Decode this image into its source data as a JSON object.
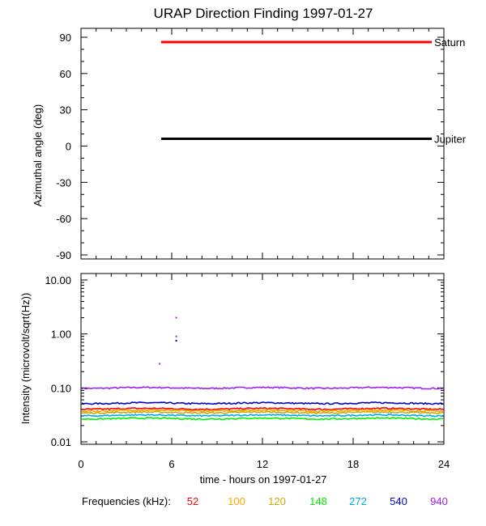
{
  "title": "URAP Direction Finding  1997-01-27",
  "chart_data": [
    {
      "type": "line",
      "panel": "top",
      "ylabel": "Azimuthal angle (deg)",
      "xlim": [
        0,
        24
      ],
      "ylim": [
        -90,
        90
      ],
      "yticks": [
        "90",
        "60",
        "30",
        "0",
        "-30",
        "-60",
        "-90"
      ],
      "series": [
        {
          "name": "Saturn",
          "color": "#ff0000",
          "x": [
            5.3,
            23.2
          ],
          "values": [
            86,
            86
          ]
        },
        {
          "name": "Jupiter",
          "color": "#000000",
          "x": [
            5.3,
            23.2
          ],
          "values": [
            6,
            6
          ]
        }
      ],
      "grid": false
    },
    {
      "type": "line",
      "panel": "bottom",
      "ylabel": "Intensity (microvolt/sqrt(Hz))",
      "xlabel": "time - hours on 1997-01-27",
      "xlim": [
        0,
        24
      ],
      "ylim": [
        0.01,
        10
      ],
      "yscale": "log",
      "xticks": [
        "0",
        "6",
        "12",
        "18",
        "24"
      ],
      "yticks": [
        "10.00",
        "1.00",
        "0.10",
        "0.01"
      ],
      "series": [
        {
          "name": "940",
          "color": "#a020f0",
          "x": [
            0,
            24
          ],
          "values": [
            0.1,
            0.1
          ]
        },
        {
          "name": "540",
          "color": "#0000cc",
          "x": [
            0,
            24
          ],
          "values": [
            0.052,
            0.052
          ]
        },
        {
          "name": "52",
          "color": "#ff0000",
          "x": [
            0,
            24
          ],
          "values": [
            0.041,
            0.041
          ]
        },
        {
          "name": "100",
          "color": "#ffa500",
          "x": [
            0,
            24
          ],
          "values": [
            0.038,
            0.038
          ]
        },
        {
          "name": "120",
          "color": "#ccaa00",
          "x": [
            0,
            24
          ],
          "values": [
            0.035,
            0.035
          ]
        },
        {
          "name": "272",
          "color": "#00aaee",
          "x": [
            0,
            24
          ],
          "values": [
            0.031,
            0.031
          ]
        },
        {
          "name": "148",
          "color": "#00ee00",
          "x": [
            0,
            24
          ],
          "values": [
            0.027,
            0.027
          ]
        }
      ],
      "spikes": [
        {
          "x": 6.3,
          "y": 2.0,
          "color": "#a020f0"
        },
        {
          "x": 6.3,
          "y": 0.9,
          "color": "#a020f0"
        },
        {
          "x": 6.3,
          "y": 0.75,
          "color": "#0000cc"
        },
        {
          "x": 5.2,
          "y": 0.28,
          "color": "#a020f0"
        }
      ],
      "grid": false
    }
  ],
  "frequencies": {
    "label": "Frequencies (kHz):",
    "items": [
      {
        "value": "52",
        "color": "#ff0000"
      },
      {
        "value": "100",
        "color": "#ffa500"
      },
      {
        "value": "120",
        "color": "#ccaa00"
      },
      {
        "value": "148",
        "color": "#00ee00"
      },
      {
        "value": "272",
        "color": "#00aaee"
      },
      {
        "value": "540",
        "color": "#0000cc"
      },
      {
        "value": "940",
        "color": "#a020f0"
      }
    ]
  }
}
